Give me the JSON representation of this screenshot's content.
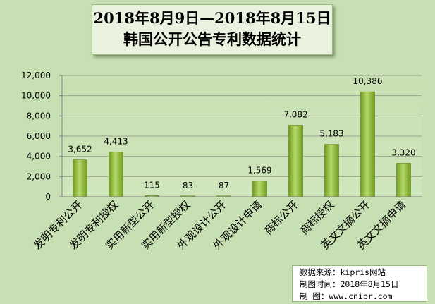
{
  "title_lines": [
    "2018年8月9日—2018年8月15日",
    "韩国公开公告专利数据统计"
  ],
  "source": {
    "line1": "数据来源：kipris网站",
    "line2": "制图时间：2018年8月15日",
    "line3": "制    图：www.cnipr.com"
  },
  "chart_data": {
    "type": "bar",
    "categories": [
      "发明专利公开",
      "发明专利授权",
      "实用新型公开",
      "实用新型授权",
      "外观设计公开",
      "外观设计申请",
      "商标公开",
      "商标授权",
      "英文文摘公开",
      "英文文摘申请"
    ],
    "values": [
      3652,
      4413,
      115,
      83,
      87,
      1569,
      7082,
      5183,
      10386,
      3320
    ],
    "value_labels": [
      "3,652",
      "4,413",
      "115",
      "83",
      "87",
      "1,569",
      "7,082",
      "5,183",
      "10,386",
      "3,320"
    ],
    "yticks": [
      0,
      2000,
      4000,
      6000,
      8000,
      10000,
      12000
    ],
    "ytick_labels": [
      "0",
      "2,000",
      "4,000",
      "6,000",
      "8,000",
      "10,000",
      "12,000"
    ],
    "ylim": [
      0,
      12000
    ],
    "grid": true,
    "bar_color": "#8db33a"
  }
}
